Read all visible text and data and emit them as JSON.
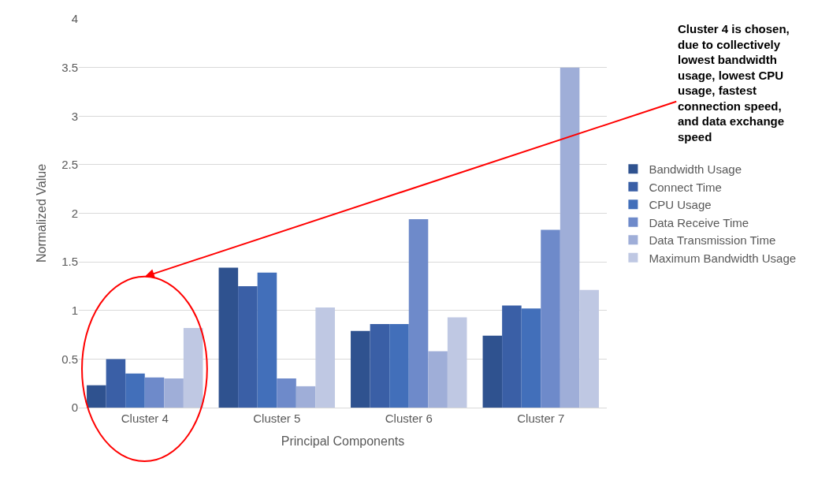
{
  "chart_data": {
    "type": "bar",
    "xlabel": "Principal Components",
    "ylabel": "Normalized Value",
    "categories": [
      "Cluster 4",
      "Cluster 5",
      "Cluster 6",
      "Cluster 7"
    ],
    "series": [
      {
        "name": "Bandwidth Usage",
        "color": "#2f528f",
        "values": [
          0.23,
          1.44,
          0.79,
          0.74
        ]
      },
      {
        "name": "Connect Time",
        "color": "#3a5fa6",
        "values": [
          0.5,
          1.25,
          0.86,
          1.05
        ]
      },
      {
        "name": "CPU Usage",
        "color": "#426fba",
        "values": [
          0.35,
          1.39,
          0.86,
          1.02
        ]
      },
      {
        "name": "Data Receive Time",
        "color": "#6e8aca",
        "values": [
          0.31,
          0.3,
          1.94,
          1.83
        ]
      },
      {
        "name": "Data Transmission Time",
        "color": "#9faed8",
        "values": [
          0.3,
          0.22,
          0.58,
          3.5
        ]
      },
      {
        "name": "Maximum Bandwidth Usage",
        "color": "#bfc8e3",
        "values": [
          0.82,
          1.03,
          0.93,
          1.21
        ]
      }
    ],
    "ylim": [
      0,
      4
    ],
    "yticks": [
      0,
      0.5,
      1,
      1.5,
      2,
      2.5,
      3,
      3.5,
      4
    ],
    "grid": "y",
    "legend": "right",
    "annotations": [
      "Cluster 4 is chosen, due to collectively lowest bandwidth usage, lowest CPU usage, fastest connection speed, and data exchange speed"
    ]
  }
}
